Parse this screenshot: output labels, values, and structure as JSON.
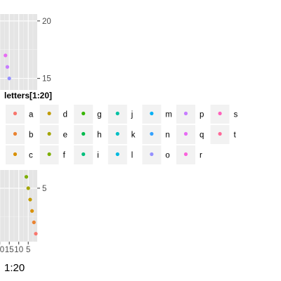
{
  "chart_data": {
    "type": "scatter",
    "title": "",
    "xlabel": "1:20",
    "ylabel": "",
    "x_ticks": [
      "20",
      "15",
      "10",
      "5"
    ],
    "y_ticks": [
      "5",
      "15",
      "20"
    ],
    "x_reversed": true,
    "xlim": [
      1,
      20
    ],
    "ylim": [
      0.5,
      20.5
    ],
    "grid": true,
    "legend": {
      "title": "letters[1:20]",
      "position": "overlay-center",
      "entries": [
        {
          "label": "a",
          "color": "#F8766D"
        },
        {
          "label": "b",
          "color": "#EA8331"
        },
        {
          "label": "c",
          "color": "#D89000"
        },
        {
          "label": "d",
          "color": "#C09B00"
        },
        {
          "label": "e",
          "color": "#A3A500"
        },
        {
          "label": "f",
          "color": "#7CAE00"
        },
        {
          "label": "g",
          "color": "#39B600"
        },
        {
          "label": "h",
          "color": "#00BB4E"
        },
        {
          "label": "i",
          "color": "#00BF7D"
        },
        {
          "label": "j",
          "color": "#00C1A3"
        },
        {
          "label": "k",
          "color": "#00BFC4"
        },
        {
          "label": "l",
          "color": "#00BAE0"
        },
        {
          "label": "m",
          "color": "#00B0F6"
        },
        {
          "label": "n",
          "color": "#35A2FF"
        },
        {
          "label": "o",
          "color": "#9590FF"
        },
        {
          "label": "p",
          "color": "#C77CFF"
        },
        {
          "label": "q",
          "color": "#E76BF3"
        },
        {
          "label": "r",
          "color": "#FA62DB"
        },
        {
          "label": "s",
          "color": "#FF62BC"
        },
        {
          "label": "t",
          "color": "#FF6A98"
        }
      ]
    },
    "points": [
      {
        "x": 1,
        "y": 1,
        "letter": "a"
      },
      {
        "x": 2,
        "y": 2,
        "letter": "b"
      },
      {
        "x": 3,
        "y": 3,
        "letter": "c"
      },
      {
        "x": 4,
        "y": 4,
        "letter": "d"
      },
      {
        "x": 5,
        "y": 5,
        "letter": "e"
      },
      {
        "x": 6,
        "y": 6,
        "letter": "f"
      },
      {
        "x": 15,
        "y": 15,
        "letter": "o"
      },
      {
        "x": 16,
        "y": 16,
        "letter": "p"
      },
      {
        "x": 17,
        "y": 17,
        "letter": "q"
      }
    ]
  }
}
